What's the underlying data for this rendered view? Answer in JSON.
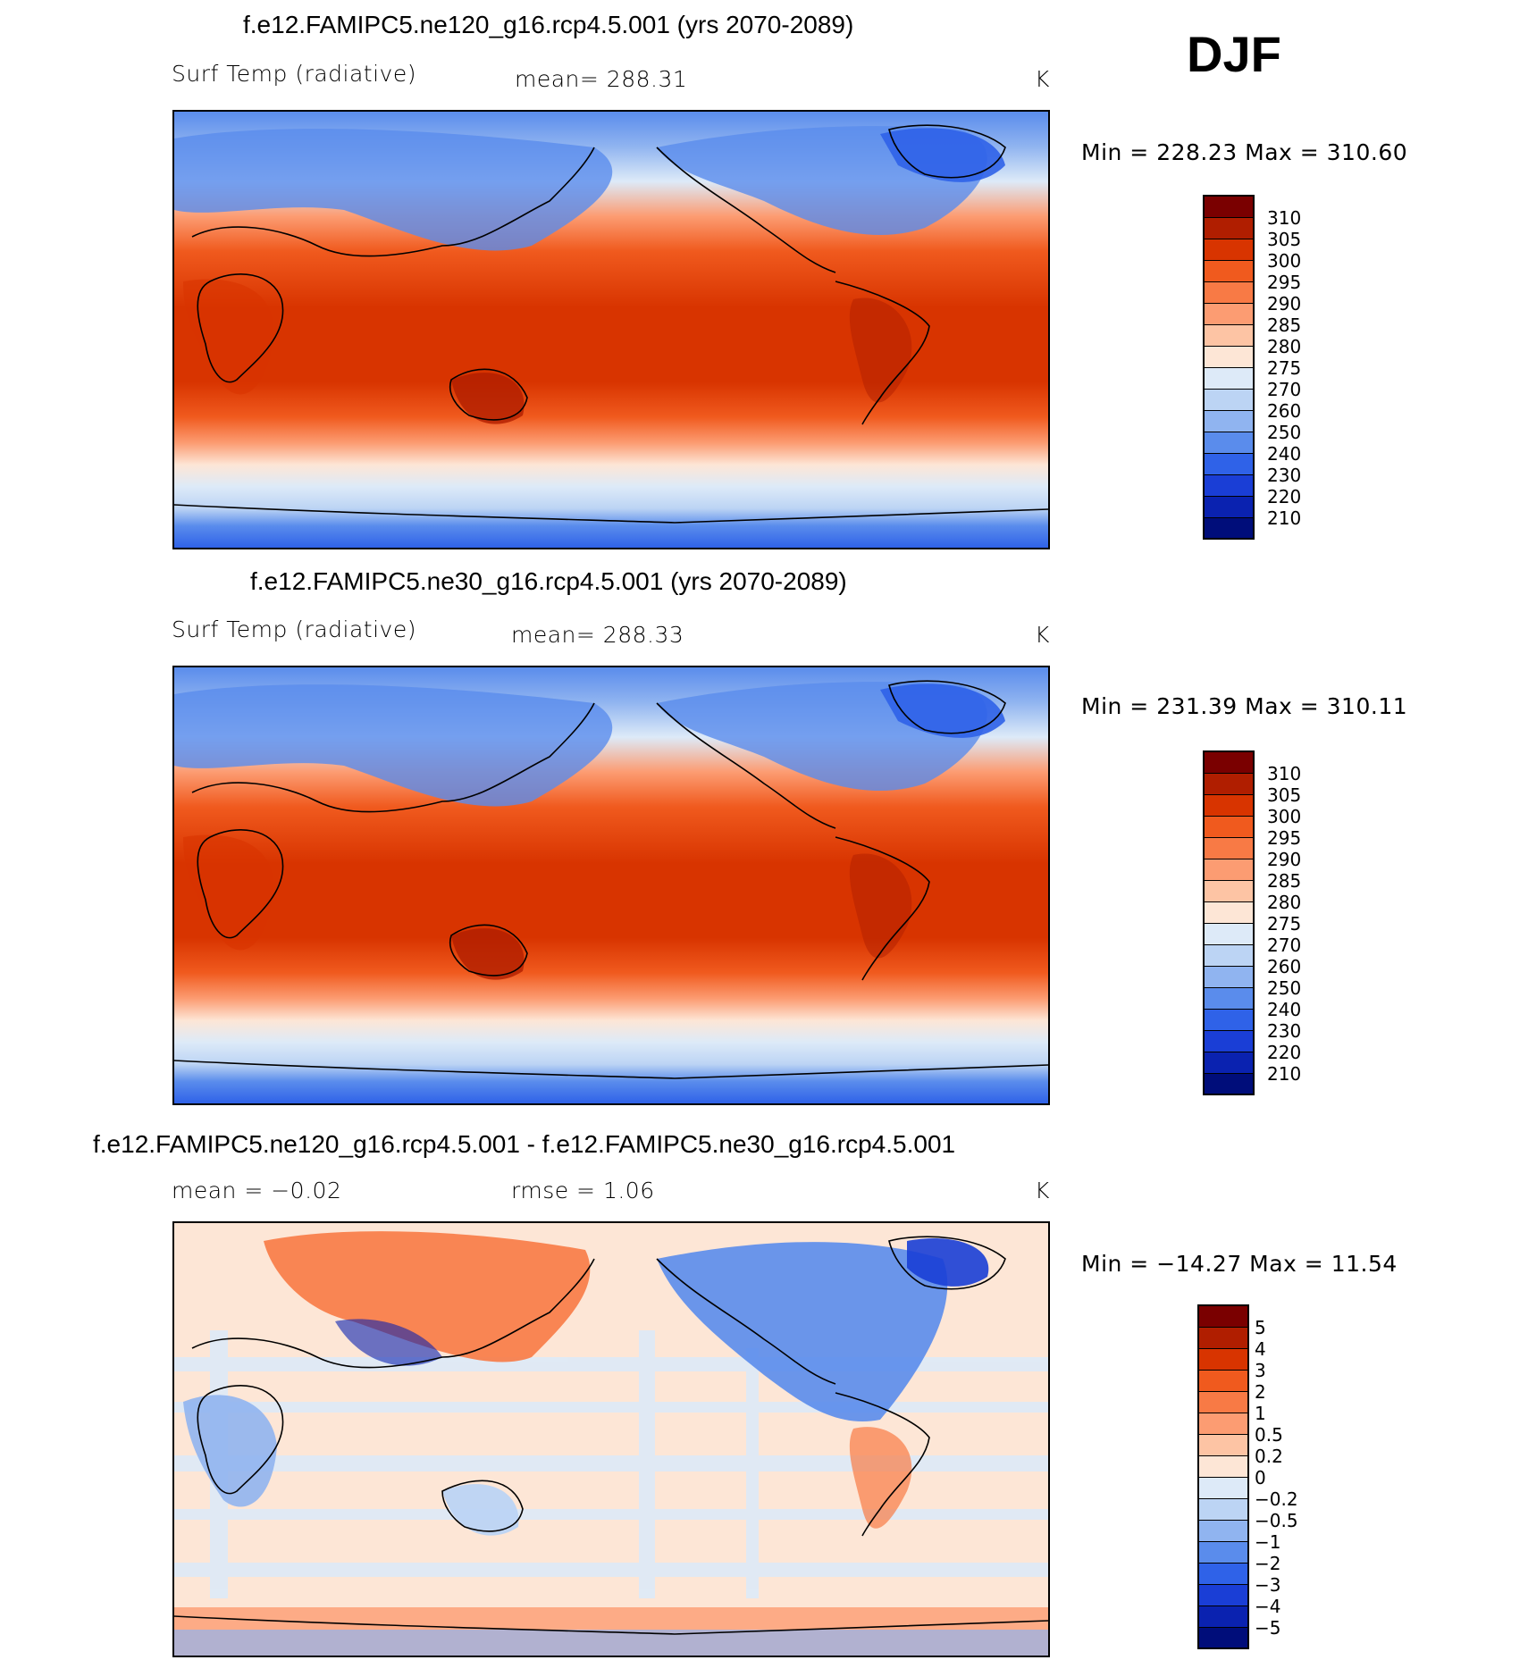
{
  "season_label": "DJF",
  "panels": [
    {
      "title": "f.e12.FAMIPC5.ne120_g16.rcp4.5.001 (yrs 2070-2089)",
      "variable": "Surf Temp (radiative)",
      "stat": "mean=  288.31",
      "units": "K",
      "minmax": "Min  =  228.23  Max  =  310.60",
      "colorbar_labels": [
        "310",
        "305",
        "300",
        "295",
        "290",
        "285",
        "280",
        "275",
        "270",
        "260",
        "250",
        "240",
        "230",
        "220",
        "210"
      ]
    },
    {
      "title": "f.e12.FAMIPC5.ne30_g16.rcp4.5.001 (yrs 2070-2089)",
      "variable": "Surf Temp (radiative)",
      "stat": "mean=  288.33",
      "units": "K",
      "minmax": "Min  =  231.39  Max  =  310.11",
      "colorbar_labels": [
        "310",
        "305",
        "300",
        "295",
        "290",
        "285",
        "280",
        "275",
        "270",
        "260",
        "250",
        "240",
        "230",
        "220",
        "210"
      ]
    },
    {
      "title": "f.e12.FAMIPC5.ne120_g16.rcp4.5.001 - f.e12.FAMIPC5.ne30_g16.rcp4.5.001",
      "variable": "mean  =    −0.02",
      "stat": "rmse  =      1.06",
      "units": "K",
      "minmax": "Min  =  −14.27  Max  =    11.54",
      "colorbar_labels": [
        "5",
        "4",
        "3",
        "2",
        "1",
        "0.5",
        "0.2",
        "0",
        "−0.2",
        "−0.5",
        "−1",
        "−2",
        "−3",
        "−4",
        "−5"
      ]
    }
  ],
  "colors": {
    "temp_scale": [
      "#7a0000",
      "#b01e00",
      "#d83400",
      "#f05a1e",
      "#f87a45",
      "#fc9c72",
      "#fdc4a4",
      "#fde6d6",
      "#ddeaf8",
      "#bcd4f4",
      "#90b4f0",
      "#5a8cec",
      "#2f62e8",
      "#1a3ed6",
      "#0a22b0",
      "#000d7a"
    ],
    "diff_scale": [
      "#7a0000",
      "#b01e00",
      "#d83400",
      "#f05a1e",
      "#f87a45",
      "#fc9c72",
      "#fdc4a4",
      "#fde6d6",
      "#ddeaf8",
      "#bcd4f4",
      "#90b4f0",
      "#5a8cec",
      "#2f62e8",
      "#1a3ed6",
      "#0a22b0",
      "#000d7a"
    ]
  }
}
